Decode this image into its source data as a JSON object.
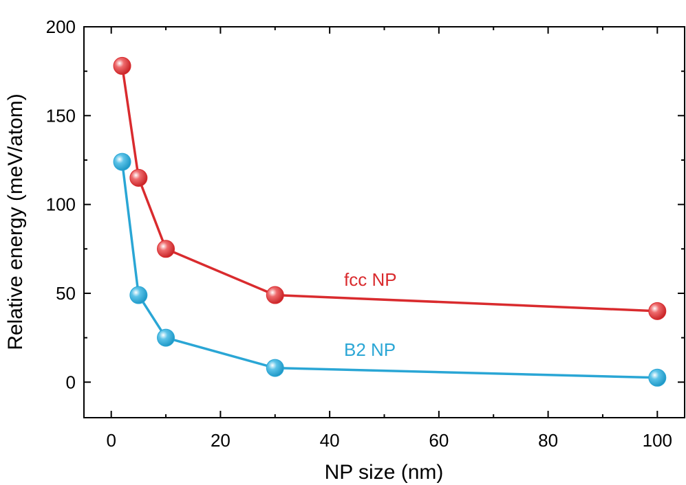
{
  "chart_data": {
    "type": "line",
    "xlabel": "NP size (nm)",
    "ylabel": "Relative energy (meV/atom)",
    "xlim": [
      -5,
      105
    ],
    "ylim": [
      -20,
      200
    ],
    "xticks": [
      0,
      20,
      40,
      60,
      80,
      100
    ],
    "yticks": [
      0,
      50,
      100,
      150,
      200
    ],
    "grid": false,
    "series": [
      {
        "name": "fcc NP",
        "color": "#d92b2e",
        "x": [
          2,
          5,
          10,
          30,
          100
        ],
        "y": [
          178,
          115,
          75,
          49,
          40
        ]
      },
      {
        "name": "B2 NP",
        "color": "#2aa6d5",
        "x": [
          2,
          5,
          10,
          30,
          100
        ],
        "y": [
          124,
          49,
          25,
          8,
          2.5
        ]
      }
    ]
  }
}
